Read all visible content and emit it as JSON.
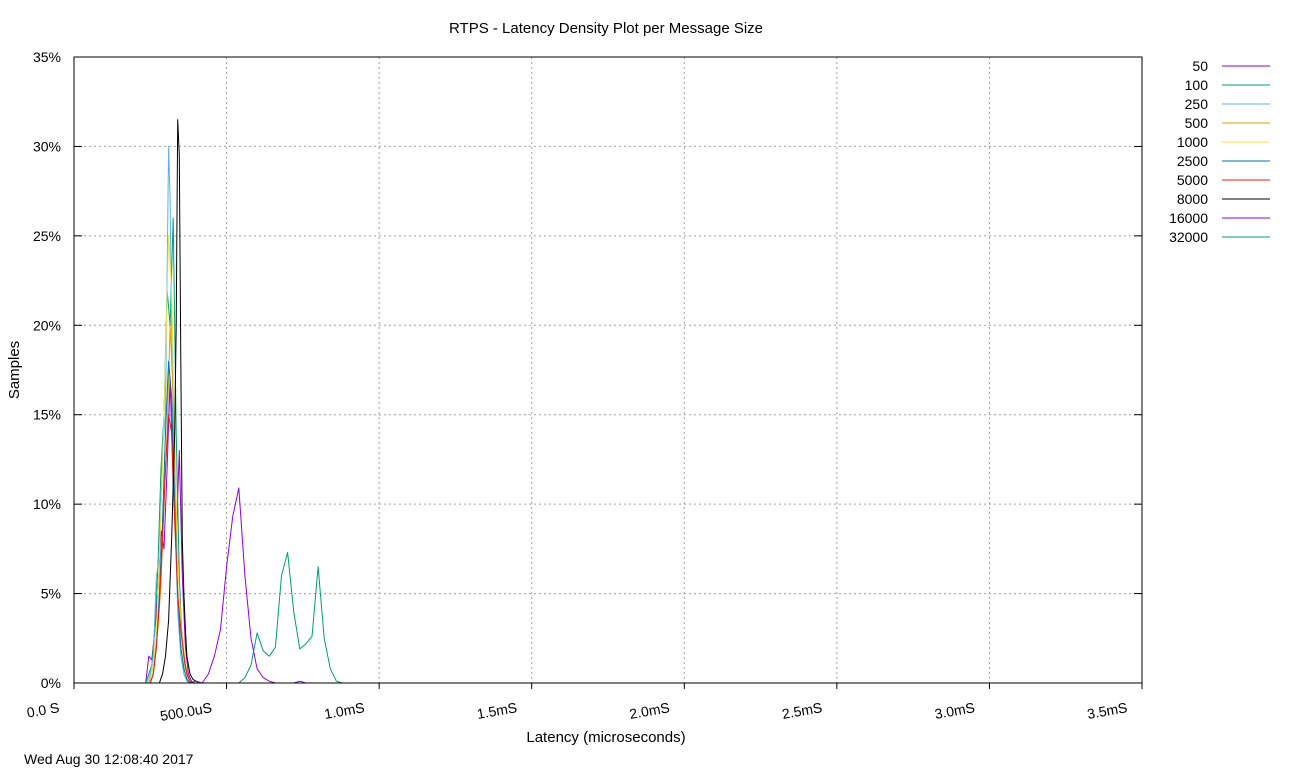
{
  "chart_data": {
    "type": "line",
    "title": "RTPS - Latency Density Plot per Message Size",
    "xlabel": "Latency (microseconds)",
    "ylabel": "Samples",
    "timestamp": "Wed Aug 30 12:08:40 2017",
    "xlim": [
      0,
      3500
    ],
    "ylim": [
      0,
      35
    ],
    "x_ticks": [
      {
        "value": 0,
        "label": "0.0 S"
      },
      {
        "value": 500,
        "label": "500.0uS"
      },
      {
        "value": 1000,
        "label": "1.0mS"
      },
      {
        "value": 1500,
        "label": "1.5mS"
      },
      {
        "value": 2000,
        "label": "2.0mS"
      },
      {
        "value": 2500,
        "label": "2.5mS"
      },
      {
        "value": 3000,
        "label": "3.0mS"
      },
      {
        "value": 3500,
        "label": "3.5mS"
      }
    ],
    "y_ticks": [
      {
        "value": 0,
        "label": "0%"
      },
      {
        "value": 5,
        "label": "5%"
      },
      {
        "value": 10,
        "label": "10%"
      },
      {
        "value": 15,
        "label": "15%"
      },
      {
        "value": 20,
        "label": "20%"
      },
      {
        "value": 25,
        "label": "25%"
      },
      {
        "value": 30,
        "label": "30%"
      },
      {
        "value": 35,
        "label": "35%"
      }
    ],
    "grid": true,
    "legend_position": "outside-top-right",
    "series": [
      {
        "name": "50",
        "color": "#9400d3",
        "x": [
          235,
          245,
          255,
          265,
          275,
          285,
          295,
          305,
          315,
          325,
          335,
          345,
          355,
          365,
          375,
          385,
          395
        ],
        "y": [
          0,
          1.5,
          1.3,
          3.0,
          5.0,
          8.5,
          7.5,
          12.0,
          17.0,
          11.0,
          8.0,
          13.0,
          6.0,
          2.0,
          0.5,
          0.1,
          0
        ]
      },
      {
        "name": "100",
        "color": "#009e73",
        "x": [
          235,
          245,
          255,
          265,
          275,
          285,
          295,
          305,
          315,
          325,
          335,
          345,
          355,
          365,
          375,
          385
        ],
        "y": [
          0,
          0.5,
          1.0,
          3.0,
          6.5,
          12.0,
          15.0,
          22.0,
          20.0,
          26.0,
          14.0,
          6.0,
          2.0,
          0.8,
          0.2,
          0
        ]
      },
      {
        "name": "250",
        "color": "#56b4e9",
        "x": [
          240,
          250,
          260,
          270,
          280,
          290,
          300,
          310,
          315,
          320,
          330,
          340,
          350,
          360,
          370,
          380
        ],
        "y": [
          0,
          0.5,
          1.5,
          6.0,
          7.0,
          13.0,
          15.0,
          30.0,
          27.0,
          20.0,
          10.0,
          4.0,
          1.5,
          0.5,
          0.1,
          0
        ]
      },
      {
        "name": "500",
        "color": "#e69f00",
        "x": [
          245,
          255,
          265,
          275,
          285,
          295,
          305,
          315,
          325,
          335,
          345,
          355,
          365,
          375,
          385
        ],
        "y": [
          0,
          0.5,
          1.5,
          3.0,
          5.5,
          10.0,
          14.0,
          20.0,
          16.0,
          9.0,
          5.0,
          2.5,
          1.0,
          0.3,
          0
        ]
      },
      {
        "name": "1000",
        "color": "#f0e442",
        "x": [
          250,
          260,
          270,
          280,
          290,
          300,
          310,
          320,
          330,
          340,
          350,
          360,
          370,
          380
        ],
        "y": [
          0,
          1.0,
          3.0,
          7.0,
          12.0,
          18.0,
          25.0,
          22.0,
          14.0,
          7.0,
          3.0,
          1.0,
          0.3,
          0
        ]
      },
      {
        "name": "2500",
        "color": "#0072b2",
        "x": [
          250,
          260,
          270,
          280,
          290,
          300,
          310,
          320,
          330,
          340,
          350,
          360,
          370,
          380
        ],
        "y": [
          0,
          0.5,
          2.0,
          5.0,
          9.0,
          14.0,
          18.0,
          16.0,
          10.0,
          5.0,
          2.0,
          0.8,
          0.2,
          0
        ]
      },
      {
        "name": "5000",
        "color": "#e51e10",
        "x": [
          250,
          260,
          270,
          280,
          290,
          300,
          310,
          320,
          330,
          340,
          350,
          360,
          370,
          380,
          390
        ],
        "y": [
          0,
          0.5,
          2.0,
          4.5,
          8.0,
          12.0,
          15.0,
          14.0,
          9.0,
          5.0,
          3.0,
          1.5,
          0.5,
          0.1,
          0
        ]
      },
      {
        "name": "8000",
        "color": "#000000",
        "x": [
          280,
          290,
          300,
          310,
          320,
          330,
          335,
          340,
          345,
          350,
          355,
          360,
          365,
          370,
          380,
          390,
          400,
          410
        ],
        "y": [
          0,
          0.5,
          1.5,
          3.5,
          8.0,
          14.0,
          20.0,
          31.5,
          29.5,
          18.0,
          8.0,
          5.0,
          3.0,
          1.5,
          0.5,
          0.2,
          0.1,
          0
        ]
      },
      {
        "name": "16000",
        "color": "#9400d3",
        "x": [
          380,
          400,
          420,
          440,
          460,
          480,
          500,
          520,
          540,
          560,
          580,
          600,
          620,
          640,
          660,
          680,
          700,
          720,
          740,
          760,
          780
        ],
        "y": [
          0,
          0.1,
          0,
          0.5,
          1.5,
          3.0,
          6.5,
          9.3,
          10.9,
          6.0,
          2.5,
          0.8,
          0.3,
          0.1,
          0,
          0,
          0,
          0,
          0.1,
          0,
          0
        ]
      },
      {
        "name": "32000",
        "color": "#009e73",
        "x": [
          500,
          520,
          540,
          560,
          580,
          600,
          620,
          640,
          660,
          680,
          700,
          720,
          740,
          760,
          780,
          800,
          820,
          840,
          860,
          880
        ],
        "y": [
          0,
          0,
          0,
          0.3,
          1.0,
          2.8,
          1.8,
          1.5,
          2.0,
          6.0,
          7.3,
          4.0,
          1.9,
          2.2,
          2.6,
          6.5,
          2.5,
          0.8,
          0.1,
          0
        ]
      }
    ]
  }
}
